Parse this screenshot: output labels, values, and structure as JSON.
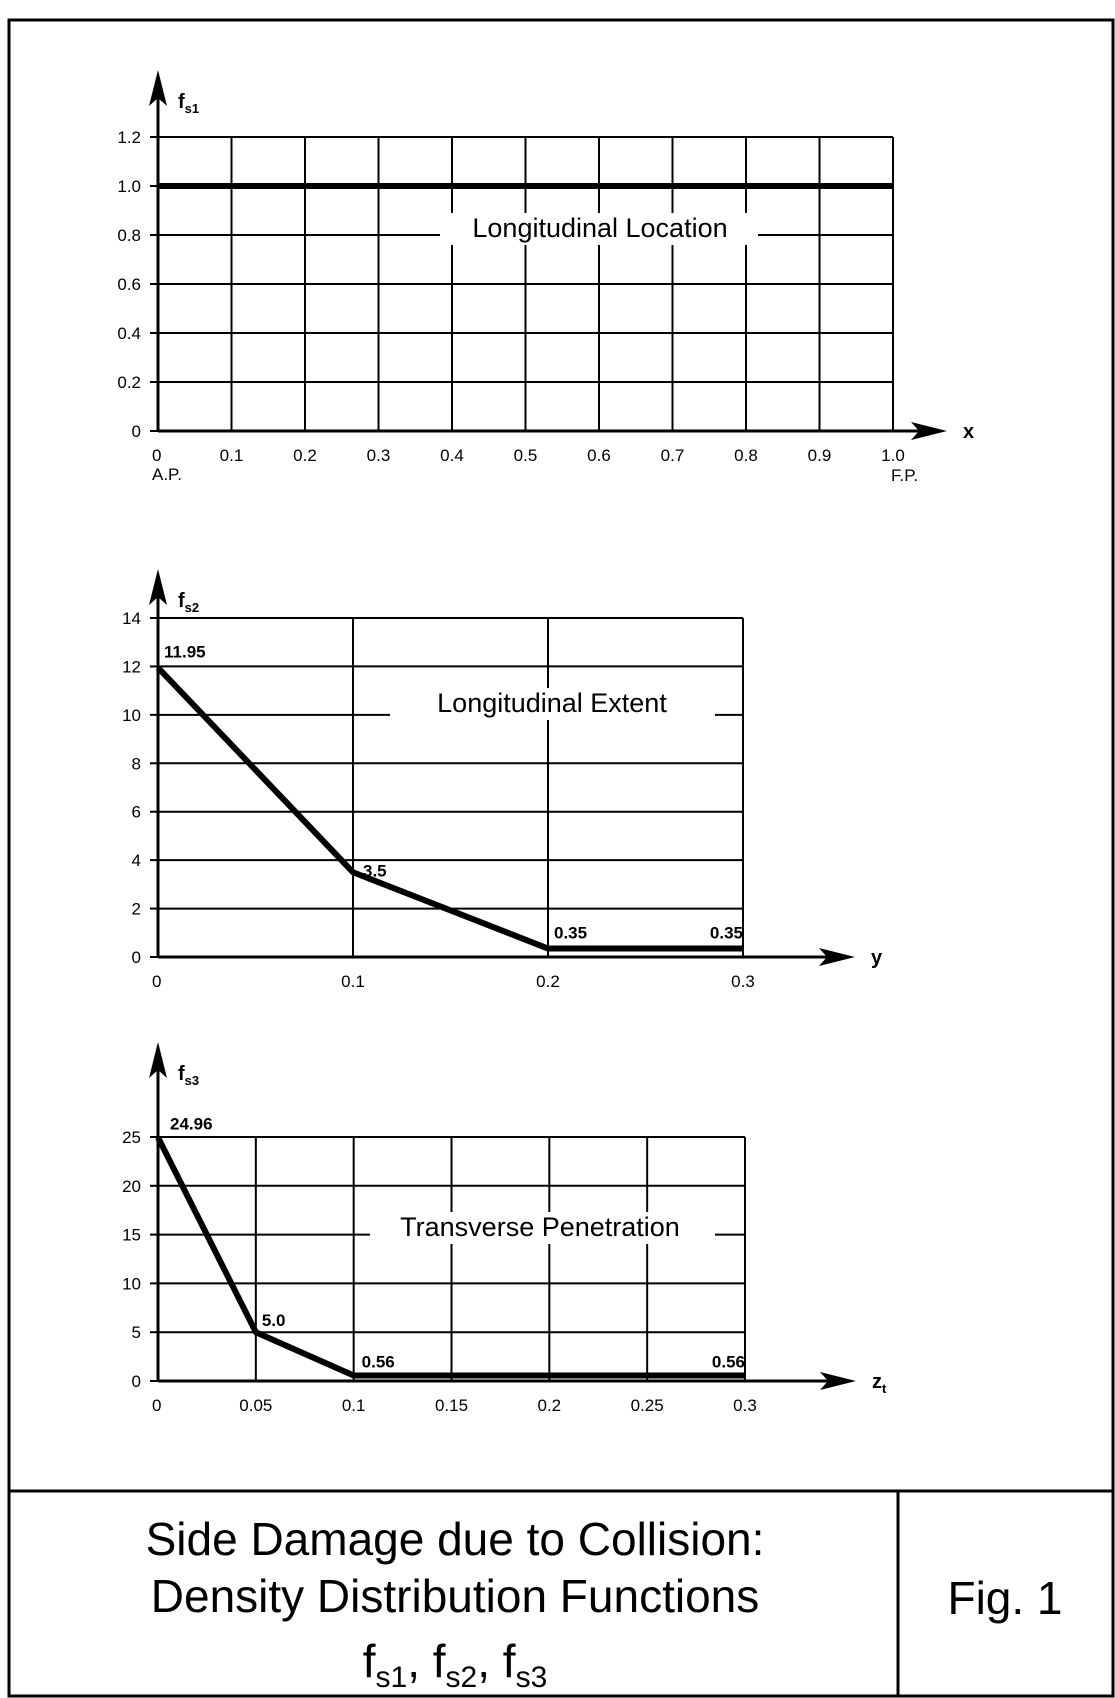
{
  "chart_data": [
    {
      "type": "line",
      "title": "Longitudinal Location",
      "xlabel": "x",
      "ylabel": "f",
      "ylabel_sub": "s1",
      "x_ticks": [
        "0",
        "0.1",
        "0.2",
        "0.3",
        "0.4",
        "0.5",
        "0.6",
        "0.7",
        "0.8",
        "0.9",
        "1.0"
      ],
      "x_tick_values": [
        0,
        0.1,
        0.2,
        0.3,
        0.4,
        0.5,
        0.6,
        0.7,
        0.8,
        0.9,
        1.0
      ],
      "x_end_labels": {
        "left": "A.P.",
        "right": "F.P."
      },
      "y_ticks": [
        "0",
        "0.2",
        "0.4",
        "0.6",
        "0.8",
        "1.0",
        "1.2"
      ],
      "y_tick_values": [
        0,
        0.2,
        0.4,
        0.6,
        0.8,
        1.0,
        1.2
      ],
      "xlim": [
        0,
        1.0
      ],
      "ylim": [
        0,
        1.2
      ],
      "grid": true,
      "series": [
        {
          "x": [
            0,
            1.0
          ],
          "y": [
            1.0,
            1.0
          ]
        }
      ],
      "point_labels": []
    },
    {
      "type": "line",
      "title": "Longitudinal Extent",
      "xlabel": "y",
      "ylabel": "f",
      "ylabel_sub": "s2",
      "x_ticks": [
        "0",
        "0.1",
        "0.2",
        "0.3"
      ],
      "x_tick_values": [
        0,
        0.1,
        0.2,
        0.3
      ],
      "y_ticks": [
        "0",
        "2",
        "4",
        "6",
        "8",
        "10",
        "12",
        "14"
      ],
      "y_tick_values": [
        0,
        2,
        4,
        6,
        8,
        10,
        12,
        14
      ],
      "xlim": [
        0,
        0.3
      ],
      "ylim": [
        0,
        14
      ],
      "grid": true,
      "series": [
        {
          "x": [
            0,
            0.1,
            0.2,
            0.3
          ],
          "y": [
            11.95,
            3.5,
            0.35,
            0.35
          ]
        }
      ],
      "point_labels": [
        {
          "x": 0,
          "y": 11.95,
          "text": "11.95"
        },
        {
          "x": 0.1,
          "y": 3.5,
          "text": "3.5"
        },
        {
          "x": 0.2,
          "y": 0.35,
          "text": "0.35"
        },
        {
          "x": 0.3,
          "y": 0.35,
          "text": "0.35"
        }
      ]
    },
    {
      "type": "line",
      "title": "Transverse Penetration",
      "xlabel": "z",
      "xlabel_sub": "t",
      "ylabel": "f",
      "ylabel_sub": "s3",
      "x_ticks": [
        "0",
        "0.05",
        "0.1",
        "0.15",
        "0.2",
        "0.25",
        "0.3"
      ],
      "x_tick_values": [
        0,
        0.05,
        0.1,
        0.15,
        0.2,
        0.25,
        0.3
      ],
      "y_ticks": [
        "0",
        "5",
        "10",
        "15",
        "20",
        "25"
      ],
      "y_tick_values": [
        0,
        5,
        10,
        15,
        20,
        25
      ],
      "xlim": [
        0,
        0.3
      ],
      "ylim": [
        0,
        25
      ],
      "grid": true,
      "series": [
        {
          "x": [
            0,
            0.05,
            0.1,
            0.3
          ],
          "y": [
            24.96,
            5.0,
            0.56,
            0.56
          ]
        }
      ],
      "point_labels": [
        {
          "x": 0,
          "y": 24.96,
          "text": "24.96"
        },
        {
          "x": 0.05,
          "y": 5.0,
          "text": "5.0"
        },
        {
          "x": 0.1,
          "y": 0.56,
          "text": "0.56"
        },
        {
          "x": 0.3,
          "y": 0.56,
          "text": "0.56"
        }
      ]
    }
  ],
  "caption": {
    "line1": "Side Damage due to Collision:",
    "line2": "Density Distribution Functions",
    "line3": {
      "f": "f",
      "sub1": "s1",
      "sep1": ", ",
      "sub2": "s2",
      "sep2": ", ",
      "sub3": "s3"
    }
  },
  "figure_label": "Fig. 1"
}
